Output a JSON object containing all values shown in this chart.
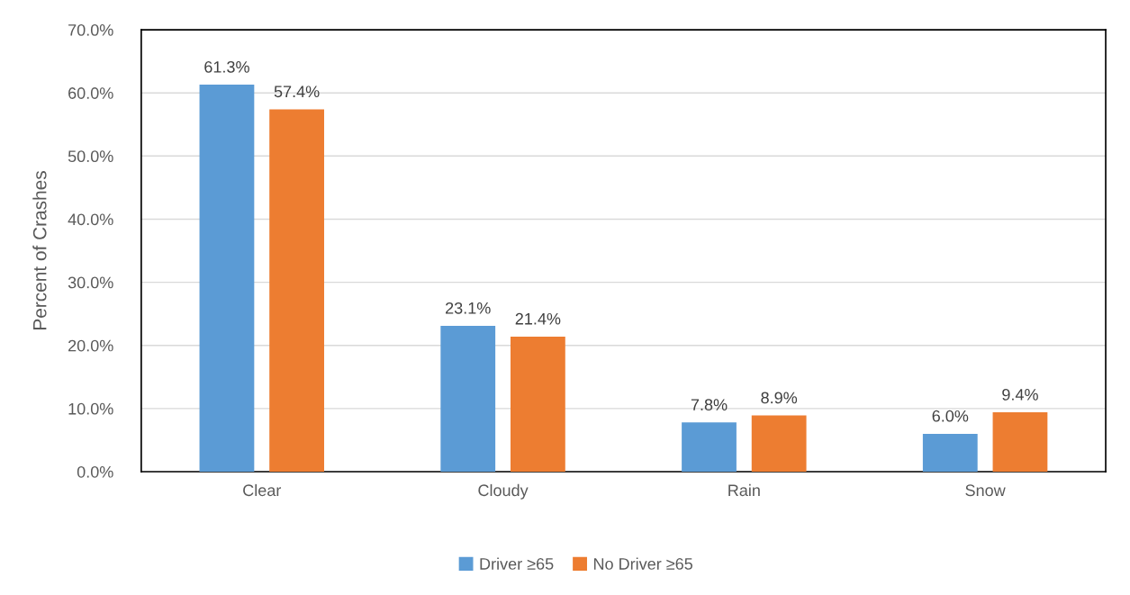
{
  "chart_data": {
    "type": "bar",
    "ylabel": "Percent of Crashes",
    "categories": [
      "Clear",
      "Cloudy",
      "Rain",
      "Snow"
    ],
    "series": [
      {
        "name": "Driver ≥65",
        "color": "#5b9bd5",
        "values": [
          61.3,
          23.1,
          7.8,
          6.0
        ],
        "value_labels": [
          "61.3%",
          "23.1%",
          "7.8%",
          "6.0%"
        ]
      },
      {
        "name": "No Driver ≥65",
        "color": "#ed7d31",
        "values": [
          57.4,
          21.4,
          8.9,
          9.4
        ],
        "value_labels": [
          "57.4%",
          "21.4%",
          "8.9%",
          "9.4%"
        ]
      }
    ],
    "ylim": [
      0,
      70
    ],
    "yticks": [
      {
        "value": 0,
        "label": "0.0%"
      },
      {
        "value": 10,
        "label": "10.0%"
      },
      {
        "value": 20,
        "label": "20.0%"
      },
      {
        "value": 30,
        "label": "30.0%"
      },
      {
        "value": 40,
        "label": "40.0%"
      },
      {
        "value": 50,
        "label": "50.0%"
      },
      {
        "value": 60,
        "label": "60.0%"
      },
      {
        "value": 70,
        "label": "70.0%"
      }
    ],
    "grid": "y",
    "legend": "bottom"
  }
}
